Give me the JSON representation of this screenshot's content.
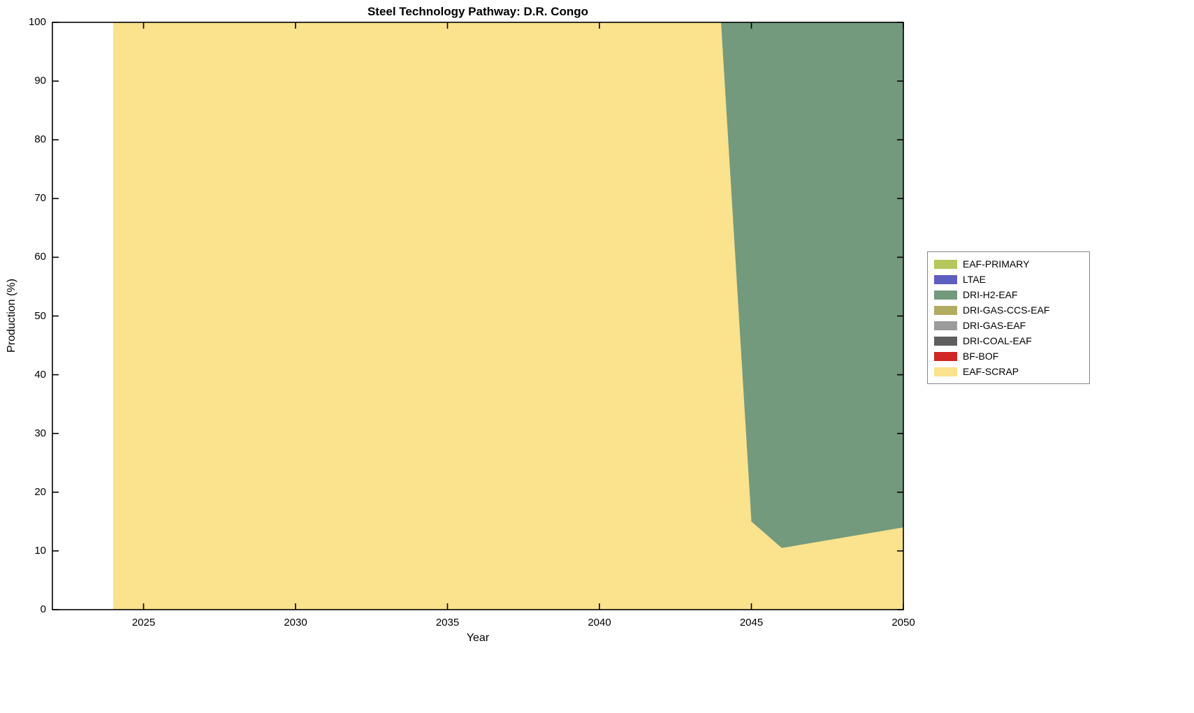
{
  "chart_data": {
    "type": "area",
    "stacked": true,
    "title": "Steel Technology Pathway: D.R. Congo",
    "xlabel": "Year",
    "ylabel": "Production (%)",
    "xlim": [
      2022,
      2050
    ],
    "ylim": [
      0,
      100
    ],
    "xticks": [
      2025,
      2030,
      2035,
      2040,
      2045,
      2050
    ],
    "yticks": [
      0,
      10,
      20,
      30,
      40,
      50,
      60,
      70,
      80,
      90,
      100
    ],
    "grid": false,
    "x": [
      2024,
      2044,
      2045,
      2046,
      2050
    ],
    "series": [
      {
        "name": "EAF-SCRAP",
        "color": "#fbe28c",
        "values": [
          100,
          100,
          15,
          10.5,
          14
        ]
      },
      {
        "name": "BF-BOF",
        "color": "#d12626",
        "values": [
          0,
          0,
          0,
          0,
          0
        ]
      },
      {
        "name": "DRI-COAL-EAF",
        "color": "#5f5f5f",
        "values": [
          0,
          0,
          0,
          0,
          0
        ]
      },
      {
        "name": "DRI-GAS-EAF",
        "color": "#9b9b9b",
        "values": [
          0,
          0,
          0,
          0,
          0
        ]
      },
      {
        "name": "DRI-GAS-CCS-EAF",
        "color": "#b2ac62",
        "values": [
          0,
          0,
          0,
          0,
          0
        ]
      },
      {
        "name": "DRI-H2-EAF",
        "color": "#739a7c",
        "values": [
          0,
          0,
          85,
          89.5,
          86
        ]
      },
      {
        "name": "LTAE",
        "color": "#5e5ec0",
        "values": [
          0,
          0,
          0,
          0,
          0
        ]
      },
      {
        "name": "EAF-PRIMARY",
        "color": "#b4c85e",
        "values": [
          0,
          0,
          0,
          0,
          0
        ]
      }
    ],
    "legend": {
      "position": "right-outside",
      "entries": [
        {
          "label": "EAF-PRIMARY",
          "color": "#b4c85e"
        },
        {
          "label": "LTAE",
          "color": "#5e5ec0"
        },
        {
          "label": "DRI-H2-EAF",
          "color": "#739a7c"
        },
        {
          "label": "DRI-GAS-CCS-EAF",
          "color": "#b2ac62"
        },
        {
          "label": "DRI-GAS-EAF",
          "color": "#9b9b9b"
        },
        {
          "label": "DRI-COAL-EAF",
          "color": "#5f5f5f"
        },
        {
          "label": "BF-BOF",
          "color": "#d12626"
        },
        {
          "label": "EAF-SCRAP",
          "color": "#fbe28c"
        }
      ]
    }
  }
}
